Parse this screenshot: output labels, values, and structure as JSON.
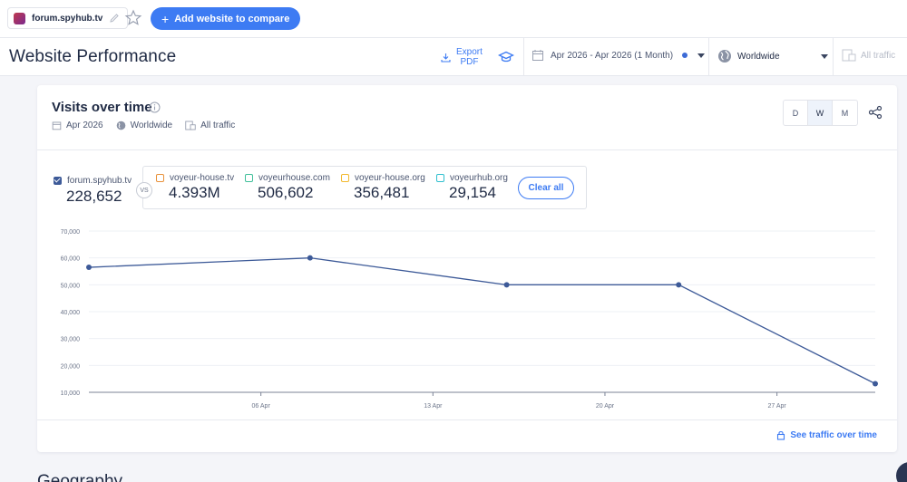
{
  "topbar": {
    "site_name": "forum.spyhub.tv",
    "add_button_label": "Add website to compare"
  },
  "header": {
    "title": "Website Performance",
    "export_label_line1": "Export",
    "export_label_line2": "PDF",
    "date_range": "Apr 2026 - Apr 2026 (1 Month)",
    "region": "Worldwide",
    "traffic_type": "All traffic"
  },
  "card": {
    "title": "Visits over time",
    "meta_date": "Apr 2026",
    "meta_region": "Worldwide",
    "meta_traffic": "All traffic",
    "granularity": [
      "D",
      "W",
      "M"
    ],
    "granularity_selected": "W",
    "main_site": {
      "name": "forum.spyhub.tv",
      "value": "228,652",
      "color": "#3d5a98"
    },
    "vs_label": "VS",
    "competitors": [
      {
        "name": "voyeur-house.tv",
        "value": "4.393M",
        "color": "#e8913a"
      },
      {
        "name": "voyeurhouse.com",
        "value": "506,602",
        "color": "#3fbf9a"
      },
      {
        "name": "voyeur-house.org",
        "value": "356,481",
        "color": "#f2b92e"
      },
      {
        "name": "voyeurhub.org",
        "value": "29,154",
        "color": "#2fbfcf"
      }
    ],
    "clear_all_label": "Clear all",
    "see_traffic_label": "See traffic over time"
  },
  "geography_heading": "Geography",
  "chart_data": {
    "type": "line",
    "y_ticks": [
      "70,000",
      "60,000",
      "50,000",
      "40,000",
      "30,000",
      "20,000",
      "10,000"
    ],
    "x_ticks": [
      "06 Apr",
      "13 Apr",
      "20 Apr",
      "27 Apr"
    ],
    "ylim": [
      10000,
      70000
    ],
    "series": [
      {
        "name": "forum.spyhub.tv",
        "color": "#3d5a98",
        "x": [
          "2026-03-30",
          "2026-04-08",
          "2026-04-16",
          "2026-04-23",
          "2026-05-01"
        ],
        "values": [
          56500,
          60000,
          50000,
          50000,
          13200
        ]
      }
    ]
  }
}
